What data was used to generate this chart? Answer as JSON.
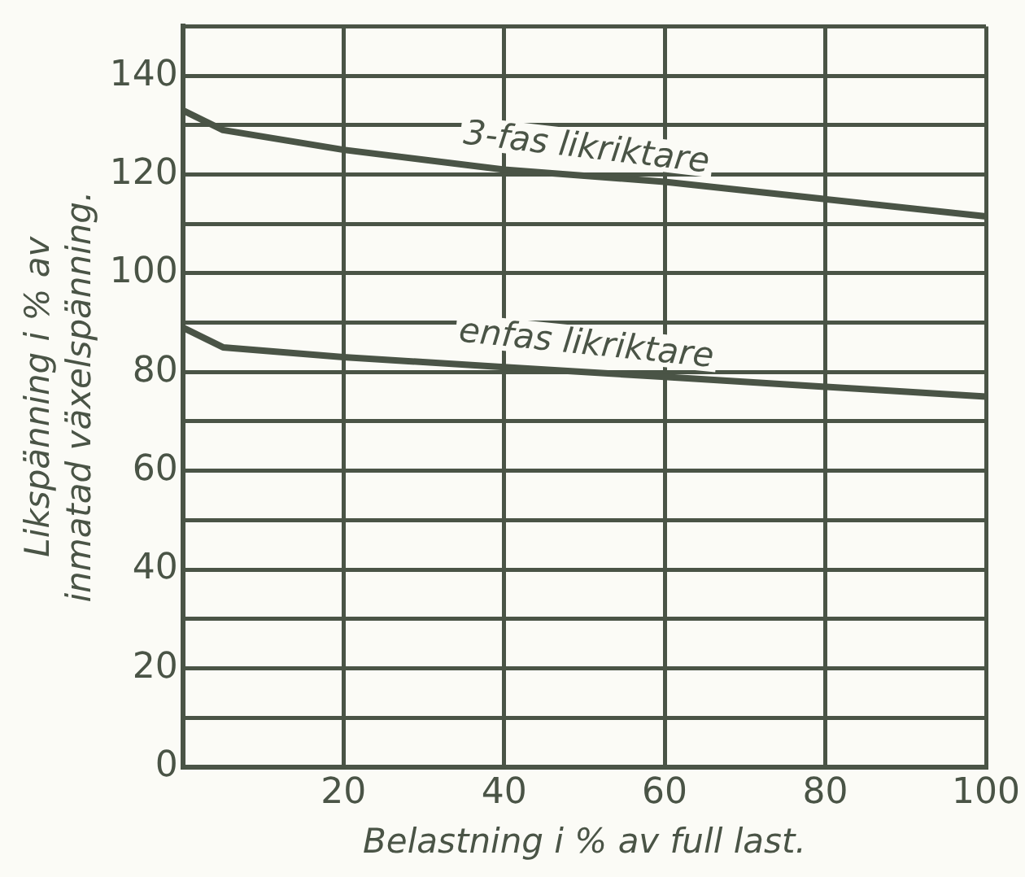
{
  "chart_data": {
    "type": "line",
    "xlabel": "Belastning i % av full last.",
    "ylabel": "Likspänning i % av\ninmatad växelspänning.",
    "xlim": [
      0,
      100
    ],
    "xticks": [
      {
        "value": 0,
        "label": null
      },
      20,
      40,
      60,
      80,
      100
    ],
    "ylim": [
      0,
      150
    ],
    "yticks": [
      0,
      {
        "value": 10,
        "label": null
      },
      20,
      {
        "value": 30,
        "label": null
      },
      40,
      {
        "value": 50,
        "label": null
      },
      60,
      {
        "value": 70,
        "label": null
      },
      80,
      {
        "value": 90,
        "label": null
      },
      100,
      {
        "value": 110,
        "label": null
      },
      120,
      {
        "value": 130,
        "label": null
      },
      140,
      {
        "value": 150,
        "label": null
      }
    ],
    "grid": true,
    "legend": false,
    "marker": "none",
    "line_style": "solid",
    "series": [
      {
        "name": "3-fas likriktare",
        "color": "#4a5446",
        "x": [
          0,
          5,
          20,
          40,
          60,
          80,
          100
        ],
        "values": [
          133,
          129,
          125,
          121,
          118.5,
          115,
          111.5
        ]
      },
      {
        "name": "enfas likriktare",
        "color": "#4a5446",
        "x": [
          0,
          5,
          20,
          40,
          60,
          80,
          100
        ],
        "values": [
          89,
          85,
          83,
          81,
          79,
          77,
          75
        ]
      }
    ]
  }
}
